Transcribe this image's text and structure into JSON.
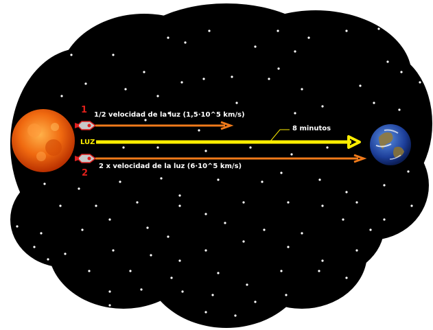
{
  "labels": {
    "ship1_number": "1",
    "ship2_number": "2",
    "ship1_speed": "1/2 velocidad de la luz (1,5·10^5 km/s)",
    "ship2_speed": "2 x velocidad de la luz (6·10^5 km/s)",
    "light": "LUZ",
    "travel_time": "8 minutos"
  },
  "colors": {
    "space": "#000000",
    "ship_arrow": "#f07a1a",
    "light_arrow": "#ffee00",
    "number_red": "#e0201b"
  },
  "icons": {
    "sun": "sun-icon",
    "earth": "earth-icon",
    "ship": "rocket-icon"
  }
}
